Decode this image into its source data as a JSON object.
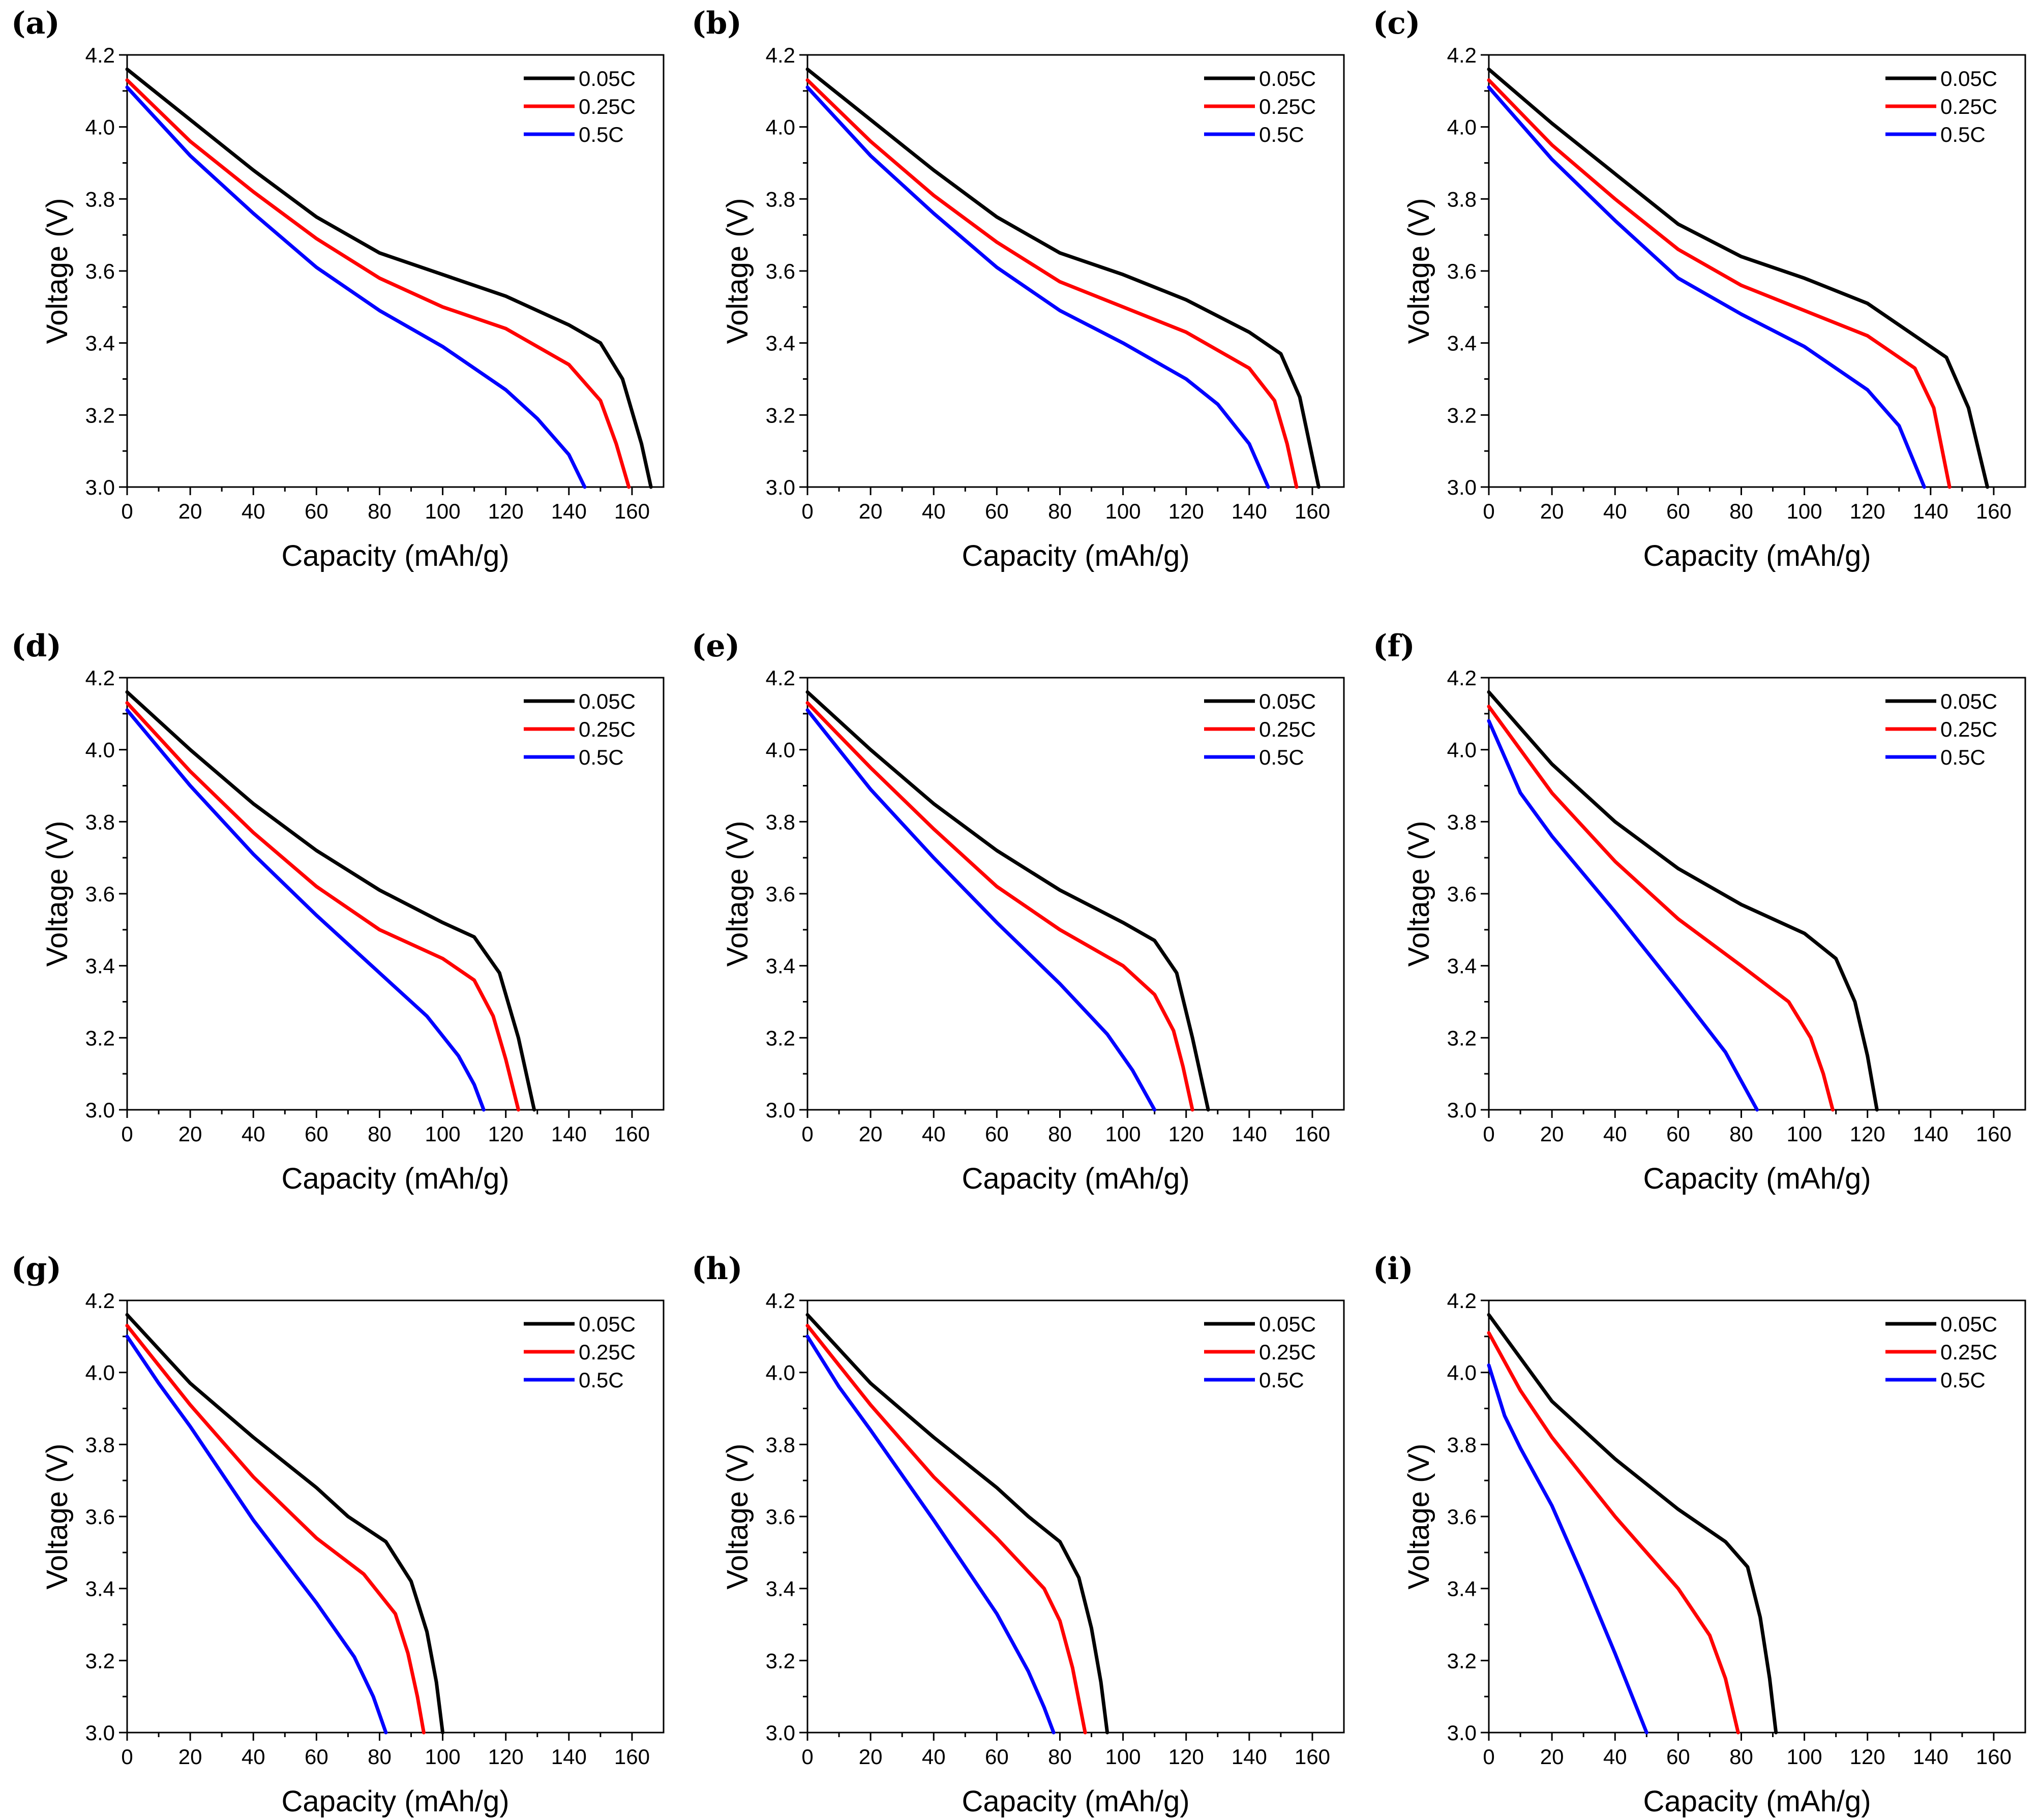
{
  "colors": {
    "0.05C": "#000000",
    "0.25C": "#ff0000",
    "0.5C": "#0000ff"
  },
  "chart_data": [
    {
      "type": "line",
      "panel_label": "(a)",
      "xlabel": "Capacity (mAh/g)",
      "ylabel": "Voltage (V)",
      "xlim": [
        0,
        170
      ],
      "ylim": [
        3.0,
        4.2
      ],
      "xticks": [
        0,
        20,
        40,
        60,
        80,
        100,
        120,
        140,
        160
      ],
      "yticks": [
        3.0,
        3.2,
        3.4,
        3.6,
        3.8,
        4.0,
        4.2
      ],
      "legend_position": "top-right",
      "series": [
        {
          "name": "0.05C",
          "x": [
            0,
            20,
            40,
            60,
            80,
            100,
            120,
            140,
            150,
            157,
            163,
            166
          ],
          "y": [
            4.16,
            4.02,
            3.88,
            3.75,
            3.65,
            3.59,
            3.53,
            3.45,
            3.4,
            3.3,
            3.12,
            3.0
          ]
        },
        {
          "name": "0.25C",
          "x": [
            0,
            20,
            40,
            60,
            80,
            100,
            120,
            140,
            150,
            155,
            159
          ],
          "y": [
            4.13,
            3.96,
            3.82,
            3.69,
            3.58,
            3.5,
            3.44,
            3.34,
            3.24,
            3.12,
            3.0
          ]
        },
        {
          "name": "0.5C",
          "x": [
            0,
            20,
            40,
            60,
            80,
            100,
            120,
            130,
            140,
            145
          ],
          "y": [
            4.11,
            3.92,
            3.76,
            3.61,
            3.49,
            3.39,
            3.27,
            3.19,
            3.09,
            3.0
          ]
        }
      ]
    },
    {
      "type": "line",
      "panel_label": "(b)",
      "xlabel": "Capacity (mAh/g)",
      "ylabel": "Voltage (V)",
      "xlim": [
        0,
        170
      ],
      "ylim": [
        3.0,
        4.2
      ],
      "xticks": [
        0,
        20,
        40,
        60,
        80,
        100,
        120,
        140,
        160
      ],
      "yticks": [
        3.0,
        3.2,
        3.4,
        3.6,
        3.8,
        4.0,
        4.2
      ],
      "legend_position": "top-right",
      "series": [
        {
          "name": "0.05C",
          "x": [
            0,
            20,
            40,
            60,
            80,
            100,
            120,
            140,
            150,
            156,
            162
          ],
          "y": [
            4.16,
            4.02,
            3.88,
            3.75,
            3.65,
            3.59,
            3.52,
            3.43,
            3.37,
            3.25,
            3.0
          ]
        },
        {
          "name": "0.25C",
          "x": [
            0,
            20,
            40,
            60,
            80,
            100,
            120,
            140,
            148,
            152,
            155
          ],
          "y": [
            4.13,
            3.96,
            3.81,
            3.68,
            3.57,
            3.5,
            3.43,
            3.33,
            3.24,
            3.12,
            3.0
          ]
        },
        {
          "name": "0.5C",
          "x": [
            0,
            20,
            40,
            60,
            80,
            100,
            120,
            130,
            140,
            146
          ],
          "y": [
            4.11,
            3.92,
            3.76,
            3.61,
            3.49,
            3.4,
            3.3,
            3.23,
            3.12,
            3.0
          ]
        }
      ]
    },
    {
      "type": "line",
      "panel_label": "(c)",
      "xlabel": "Capacity (mAh/g)",
      "ylabel": "Voltage (V)",
      "xlim": [
        0,
        170
      ],
      "ylim": [
        3.0,
        4.2
      ],
      "xticks": [
        0,
        20,
        40,
        60,
        80,
        100,
        120,
        140,
        160
      ],
      "yticks": [
        3.0,
        3.2,
        3.4,
        3.6,
        3.8,
        4.0,
        4.2
      ],
      "legend_position": "top-right",
      "series": [
        {
          "name": "0.05C",
          "x": [
            0,
            20,
            40,
            60,
            80,
            100,
            120,
            135,
            145,
            152,
            158
          ],
          "y": [
            4.16,
            4.01,
            3.87,
            3.73,
            3.64,
            3.58,
            3.51,
            3.42,
            3.36,
            3.22,
            3.0
          ]
        },
        {
          "name": "0.25C",
          "x": [
            0,
            20,
            40,
            60,
            80,
            100,
            120,
            135,
            141,
            146
          ],
          "y": [
            4.13,
            3.95,
            3.8,
            3.66,
            3.56,
            3.49,
            3.42,
            3.33,
            3.22,
            3.0
          ]
        },
        {
          "name": "0.5C",
          "x": [
            0,
            20,
            40,
            60,
            80,
            100,
            120,
            130,
            138
          ],
          "y": [
            4.11,
            3.91,
            3.74,
            3.58,
            3.48,
            3.39,
            3.27,
            3.17,
            3.0
          ]
        }
      ]
    },
    {
      "type": "line",
      "panel_label": "(d)",
      "xlabel": "Capacity (mAh/g)",
      "ylabel": "Voltage (V)",
      "xlim": [
        0,
        170
      ],
      "ylim": [
        3.0,
        4.2
      ],
      "xticks": [
        0,
        20,
        40,
        60,
        80,
        100,
        120,
        140,
        160
      ],
      "yticks": [
        3.0,
        3.2,
        3.4,
        3.6,
        3.8,
        4.0,
        4.2
      ],
      "legend_position": "top-right",
      "series": [
        {
          "name": "0.05C",
          "x": [
            0,
            20,
            40,
            60,
            80,
            100,
            110,
            118,
            124,
            129
          ],
          "y": [
            4.16,
            4.0,
            3.85,
            3.72,
            3.61,
            3.52,
            3.48,
            3.38,
            3.2,
            3.0
          ]
        },
        {
          "name": "0.25C",
          "x": [
            0,
            20,
            40,
            60,
            80,
            100,
            110,
            116,
            120,
            124
          ],
          "y": [
            4.13,
            3.94,
            3.77,
            3.62,
            3.5,
            3.42,
            3.36,
            3.26,
            3.14,
            3.0
          ]
        },
        {
          "name": "0.5C",
          "x": [
            0,
            20,
            40,
            60,
            80,
            95,
            105,
            110,
            113
          ],
          "y": [
            4.11,
            3.9,
            3.71,
            3.54,
            3.38,
            3.26,
            3.15,
            3.07,
            3.0
          ]
        }
      ]
    },
    {
      "type": "line",
      "panel_label": "(e)",
      "xlabel": "Capacity (mAh/g)",
      "ylabel": "Voltage (V)",
      "xlim": [
        0,
        170
      ],
      "ylim": [
        3.0,
        4.2
      ],
      "xticks": [
        0,
        20,
        40,
        60,
        80,
        100,
        120,
        140,
        160
      ],
      "yticks": [
        3.0,
        3.2,
        3.4,
        3.6,
        3.8,
        4.0,
        4.2
      ],
      "legend_position": "top-right",
      "series": [
        {
          "name": "0.05C",
          "x": [
            0,
            20,
            40,
            60,
            80,
            100,
            110,
            117,
            122,
            127
          ],
          "y": [
            4.16,
            4.0,
            3.85,
            3.72,
            3.61,
            3.52,
            3.47,
            3.38,
            3.2,
            3.0
          ]
        },
        {
          "name": "0.25C",
          "x": [
            0,
            20,
            40,
            60,
            80,
            100,
            110,
            116,
            119,
            122
          ],
          "y": [
            4.13,
            3.95,
            3.78,
            3.62,
            3.5,
            3.4,
            3.32,
            3.22,
            3.12,
            3.0
          ]
        },
        {
          "name": "0.5C",
          "x": [
            0,
            20,
            40,
            60,
            80,
            95,
            103,
            110
          ],
          "y": [
            4.11,
            3.89,
            3.7,
            3.52,
            3.35,
            3.21,
            3.11,
            3.0
          ]
        }
      ]
    },
    {
      "type": "line",
      "panel_label": "(f)",
      "xlabel": "Capacity (mAh/g)",
      "ylabel": "Voltage (V)",
      "xlim": [
        0,
        170
      ],
      "ylim": [
        3.0,
        4.2
      ],
      "xticks": [
        0,
        20,
        40,
        60,
        80,
        100,
        120,
        140,
        160
      ],
      "yticks": [
        3.0,
        3.2,
        3.4,
        3.6,
        3.8,
        4.0,
        4.2
      ],
      "legend_position": "top-right",
      "series": [
        {
          "name": "0.05C",
          "x": [
            0,
            20,
            40,
            60,
            80,
            100,
            110,
            116,
            120,
            123
          ],
          "y": [
            4.16,
            3.96,
            3.8,
            3.67,
            3.57,
            3.49,
            3.42,
            3.3,
            3.15,
            3.0
          ]
        },
        {
          "name": "0.25C",
          "x": [
            0,
            20,
            40,
            60,
            80,
            95,
            102,
            106,
            109
          ],
          "y": [
            4.12,
            3.88,
            3.69,
            3.53,
            3.4,
            3.3,
            3.2,
            3.1,
            3.0
          ]
        },
        {
          "name": "0.5C",
          "x": [
            0,
            10,
            20,
            40,
            60,
            75,
            85
          ],
          "y": [
            4.08,
            3.88,
            3.76,
            3.55,
            3.33,
            3.16,
            3.0
          ]
        }
      ]
    },
    {
      "type": "line",
      "panel_label": "(g)",
      "xlabel": "Capacity (mAh/g)",
      "ylabel": "Voltage (V)",
      "xlim": [
        0,
        170
      ],
      "ylim": [
        3.0,
        4.2
      ],
      "xticks": [
        0,
        20,
        40,
        60,
        80,
        100,
        120,
        140,
        160
      ],
      "yticks": [
        3.0,
        3.2,
        3.4,
        3.6,
        3.8,
        4.0,
        4.2
      ],
      "legend_position": "top-right",
      "series": [
        {
          "name": "0.05C",
          "x": [
            0,
            20,
            40,
            60,
            70,
            82,
            90,
            95,
            98,
            100
          ],
          "y": [
            4.16,
            3.97,
            3.82,
            3.68,
            3.6,
            3.53,
            3.42,
            3.28,
            3.14,
            3.0
          ]
        },
        {
          "name": "0.25C",
          "x": [
            0,
            20,
            40,
            60,
            75,
            85,
            89,
            92,
            94
          ],
          "y": [
            4.13,
            3.91,
            3.71,
            3.54,
            3.44,
            3.33,
            3.22,
            3.1,
            3.0
          ]
        },
        {
          "name": "0.5C",
          "x": [
            0,
            10,
            20,
            40,
            60,
            72,
            78,
            82
          ],
          "y": [
            4.1,
            3.97,
            3.85,
            3.59,
            3.36,
            3.21,
            3.1,
            3.0
          ]
        }
      ]
    },
    {
      "type": "line",
      "panel_label": "(h)",
      "xlabel": "Capacity (mAh/g)",
      "ylabel": "Voltage (V)",
      "xlim": [
        0,
        170
      ],
      "ylim": [
        3.0,
        4.2
      ],
      "xticks": [
        0,
        20,
        40,
        60,
        80,
        100,
        120,
        140,
        160
      ],
      "yticks": [
        3.0,
        3.2,
        3.4,
        3.6,
        3.8,
        4.0,
        4.2
      ],
      "legend_position": "top-right",
      "series": [
        {
          "name": "0.05C",
          "x": [
            0,
            20,
            40,
            60,
            70,
            80,
            86,
            90,
            93,
            95
          ],
          "y": [
            4.16,
            3.97,
            3.82,
            3.68,
            3.6,
            3.53,
            3.43,
            3.29,
            3.14,
            3.0
          ]
        },
        {
          "name": "0.25C",
          "x": [
            0,
            20,
            40,
            60,
            75,
            80,
            84,
            88
          ],
          "y": [
            4.13,
            3.91,
            3.71,
            3.54,
            3.4,
            3.31,
            3.18,
            3.0
          ]
        },
        {
          "name": "0.5C",
          "x": [
            0,
            10,
            20,
            40,
            60,
            70,
            75,
            78
          ],
          "y": [
            4.1,
            3.96,
            3.84,
            3.59,
            3.33,
            3.17,
            3.07,
            3.0
          ]
        }
      ]
    },
    {
      "type": "line",
      "panel_label": "(i)",
      "xlabel": "Capacity (mAh/g)",
      "ylabel": "Voltage (V)",
      "xlim": [
        0,
        170
      ],
      "ylim": [
        3.0,
        4.2
      ],
      "xticks": [
        0,
        20,
        40,
        60,
        80,
        100,
        120,
        140,
        160
      ],
      "yticks": [
        3.0,
        3.2,
        3.4,
        3.6,
        3.8,
        4.0,
        4.2
      ],
      "legend_position": "top-right",
      "series": [
        {
          "name": "0.05C",
          "x": [
            0,
            20,
            40,
            60,
            75,
            82,
            86,
            89,
            91
          ],
          "y": [
            4.16,
            3.92,
            3.76,
            3.62,
            3.53,
            3.46,
            3.32,
            3.15,
            3.0
          ]
        },
        {
          "name": "0.25C",
          "x": [
            0,
            10,
            20,
            40,
            60,
            70,
            75,
            79
          ],
          "y": [
            4.11,
            3.95,
            3.82,
            3.6,
            3.4,
            3.27,
            3.15,
            3.0
          ]
        },
        {
          "name": "0.5C",
          "x": [
            0,
            5,
            10,
            20,
            30,
            40,
            50
          ],
          "y": [
            4.02,
            3.88,
            3.79,
            3.63,
            3.43,
            3.22,
            3.0
          ]
        }
      ]
    }
  ]
}
